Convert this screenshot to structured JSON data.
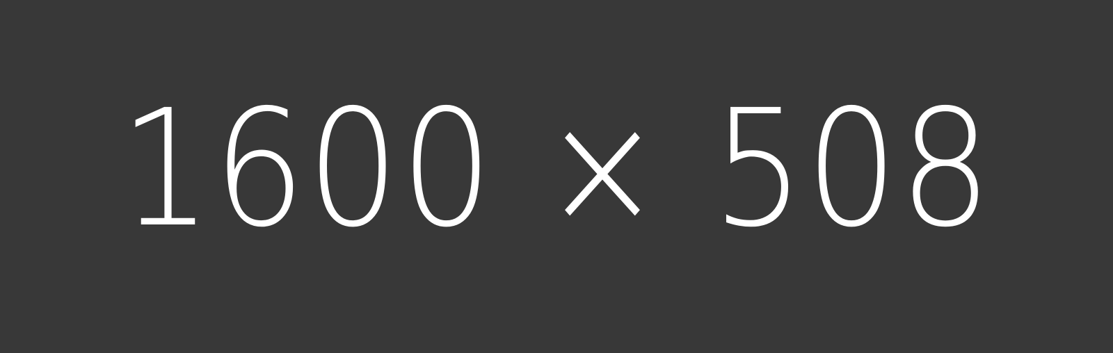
{
  "placeholder": {
    "dimensions_text": "1600 × 508",
    "background_color": "#383838",
    "text_color": "#ffffff"
  }
}
